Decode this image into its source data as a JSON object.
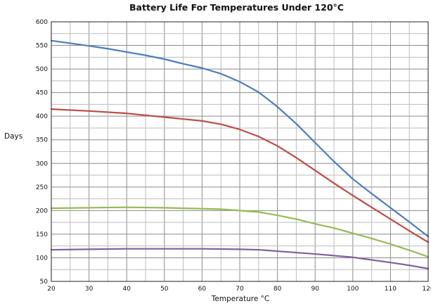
{
  "chart_data": {
    "type": "line",
    "title": "Battery Life For Temperatures Under 120°C",
    "xlabel": "Temperature °C",
    "ylabel": "Days",
    "xlim": [
      20,
      120
    ],
    "ylim": [
      50,
      600
    ],
    "x_ticks": [
      "20",
      "30",
      "40",
      "50",
      "60",
      "70",
      "80",
      "90",
      "100",
      "110",
      "120"
    ],
    "y_ticks": [
      "50",
      "100",
      "150",
      "200",
      "250",
      "300",
      "350",
      "400",
      "450",
      "500",
      "550",
      "600"
    ],
    "grid": true,
    "x_minor_step": 5,
    "y_minor_step": 25,
    "series": [
      {
        "color": "#4a7ebb",
        "points": [
          [
            20,
            560
          ],
          [
            30,
            549
          ],
          [
            35,
            543
          ],
          [
            40,
            536
          ],
          [
            45,
            529
          ],
          [
            50,
            521
          ],
          [
            55,
            511
          ],
          [
            60,
            502
          ],
          [
            65,
            490
          ],
          [
            70,
            473
          ],
          [
            75,
            451
          ],
          [
            80,
            420
          ],
          [
            85,
            384
          ],
          [
            90,
            344
          ],
          [
            95,
            304
          ],
          [
            100,
            267
          ],
          [
            105,
            236
          ],
          [
            110,
            206
          ],
          [
            115,
            176
          ],
          [
            120,
            145
          ]
        ]
      },
      {
        "color": "#be4b48",
        "points": [
          [
            20,
            415
          ],
          [
            30,
            411
          ],
          [
            40,
            406
          ],
          [
            50,
            398
          ],
          [
            60,
            390
          ],
          [
            65,
            383
          ],
          [
            70,
            372
          ],
          [
            75,
            357
          ],
          [
            80,
            337
          ],
          [
            85,
            312
          ],
          [
            90,
            285
          ],
          [
            95,
            258
          ],
          [
            100,
            232
          ],
          [
            105,
            207
          ],
          [
            110,
            182
          ],
          [
            115,
            157
          ],
          [
            120,
            133
          ]
        ]
      },
      {
        "color": "#98b954",
        "points": [
          [
            20,
            205
          ],
          [
            30,
            206
          ],
          [
            40,
            207
          ],
          [
            50,
            206
          ],
          [
            60,
            204
          ],
          [
            65,
            203
          ],
          [
            70,
            200
          ],
          [
            75,
            197
          ],
          [
            80,
            190
          ],
          [
            85,
            182
          ],
          [
            90,
            172
          ],
          [
            95,
            163
          ],
          [
            100,
            152
          ],
          [
            105,
            141
          ],
          [
            110,
            129
          ],
          [
            115,
            116
          ],
          [
            120,
            102
          ]
        ]
      },
      {
        "color": "#7d60a0",
        "points": [
          [
            20,
            117
          ],
          [
            30,
            118
          ],
          [
            40,
            119
          ],
          [
            50,
            119
          ],
          [
            60,
            119
          ],
          [
            70,
            118
          ],
          [
            75,
            117
          ],
          [
            80,
            114
          ],
          [
            90,
            108
          ],
          [
            100,
            101
          ],
          [
            110,
            90
          ],
          [
            115,
            84
          ],
          [
            120,
            77
          ]
        ]
      }
    ]
  }
}
